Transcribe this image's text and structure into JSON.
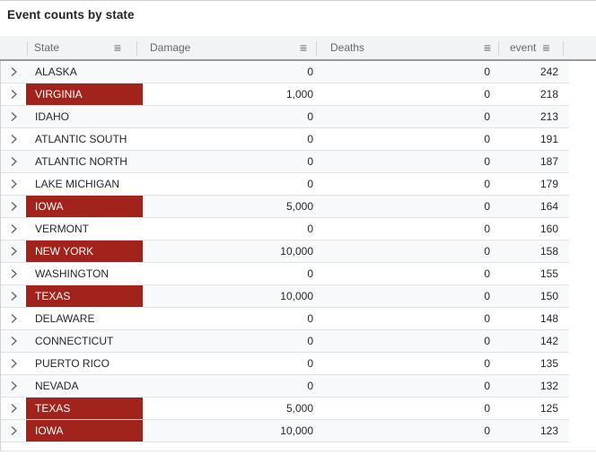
{
  "page": {
    "title": "Event counts by state"
  },
  "colors": {
    "highlight": "#a2231b",
    "header_bg": "#f2f3f4"
  },
  "icons": {
    "column_menu_glyph": "≡",
    "row_expander": "chevron-right"
  },
  "table": {
    "columns": [
      {
        "label": "State"
      },
      {
        "label": "Damage"
      },
      {
        "label": "Deaths"
      },
      {
        "label": "event"
      }
    ],
    "rows": [
      {
        "state": "ALASKA",
        "damage": "0",
        "deaths": "0",
        "event": "242",
        "highlighted": false
      },
      {
        "state": "VIRGINIA",
        "damage": "1,000",
        "deaths": "0",
        "event": "218",
        "highlighted": true
      },
      {
        "state": "IDAHO",
        "damage": "0",
        "deaths": "0",
        "event": "213",
        "highlighted": false
      },
      {
        "state": "ATLANTIC SOUTH",
        "damage": "0",
        "deaths": "0",
        "event": "191",
        "highlighted": false
      },
      {
        "state": "ATLANTIC NORTH",
        "damage": "0",
        "deaths": "0",
        "event": "187",
        "highlighted": false
      },
      {
        "state": "LAKE MICHIGAN",
        "damage": "0",
        "deaths": "0",
        "event": "179",
        "highlighted": false
      },
      {
        "state": "IOWA",
        "damage": "5,000",
        "deaths": "0",
        "event": "164",
        "highlighted": true
      },
      {
        "state": "VERMONT",
        "damage": "0",
        "deaths": "0",
        "event": "160",
        "highlighted": false
      },
      {
        "state": "NEW YORK",
        "damage": "10,000",
        "deaths": "0",
        "event": "158",
        "highlighted": true
      },
      {
        "state": "WASHINGTON",
        "damage": "0",
        "deaths": "0",
        "event": "155",
        "highlighted": false
      },
      {
        "state": "TEXAS",
        "damage": "10,000",
        "deaths": "0",
        "event": "150",
        "highlighted": true
      },
      {
        "state": "DELAWARE",
        "damage": "0",
        "deaths": "0",
        "event": "148",
        "highlighted": false
      },
      {
        "state": "CONNECTICUT",
        "damage": "0",
        "deaths": "0",
        "event": "142",
        "highlighted": false
      },
      {
        "state": "PUERTO RICO",
        "damage": "0",
        "deaths": "0",
        "event": "135",
        "highlighted": false
      },
      {
        "state": "NEVADA",
        "damage": "0",
        "deaths": "0",
        "event": "132",
        "highlighted": false
      },
      {
        "state": "TEXAS",
        "damage": "5,000",
        "deaths": "0",
        "event": "125",
        "highlighted": true
      },
      {
        "state": "IOWA",
        "damage": "10,000",
        "deaths": "0",
        "event": "123",
        "highlighted": true
      }
    ]
  }
}
